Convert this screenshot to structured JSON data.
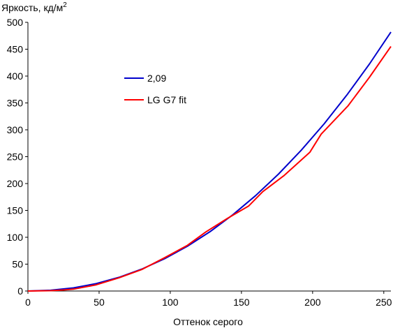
{
  "chart_data": {
    "type": "line",
    "ylabel": "Яркость, кд/м",
    "ylabel_superscript": "2",
    "xlabel": "Оттенок серого",
    "xlim": [
      0,
      255
    ],
    "ylim": [
      0,
      500
    ],
    "xticks": [
      "0",
      "50",
      "100",
      "150",
      "200",
      "250"
    ],
    "yticks": [
      "0",
      "50",
      "100",
      "150",
      "200",
      "250",
      "300",
      "350",
      "400",
      "450",
      "500"
    ],
    "grid": false,
    "legend_position": "upper-left-inside",
    "series": [
      {
        "name": "2,09",
        "color": "#0000cc",
        "x": [
          0,
          16,
          32,
          48,
          64,
          80,
          96,
          112,
          128,
          144,
          160,
          176,
          192,
          208,
          224,
          240,
          255
        ],
        "y": [
          0,
          1.4,
          5.8,
          13.8,
          25.4,
          40.8,
          60.1,
          83.3,
          110.5,
          141.9,
          177.6,
          217.5,
          262.0,
          310.9,
          364.5,
          422.7,
          482.0
        ]
      },
      {
        "name": "LG G7 fit",
        "color": "#ff0000",
        "x": [
          0,
          16,
          25,
          32,
          48,
          64,
          80,
          96,
          112,
          125,
          140,
          155,
          165,
          180,
          198,
          206,
          225,
          240,
          255
        ],
        "y": [
          0,
          0.6,
          2.0,
          3.5,
          11.5,
          24.5,
          40.0,
          62.0,
          85.0,
          110.0,
          135.0,
          158.0,
          185.0,
          215.0,
          258.0,
          292.0,
          345.0,
          398.0,
          455.0
        ]
      }
    ]
  }
}
